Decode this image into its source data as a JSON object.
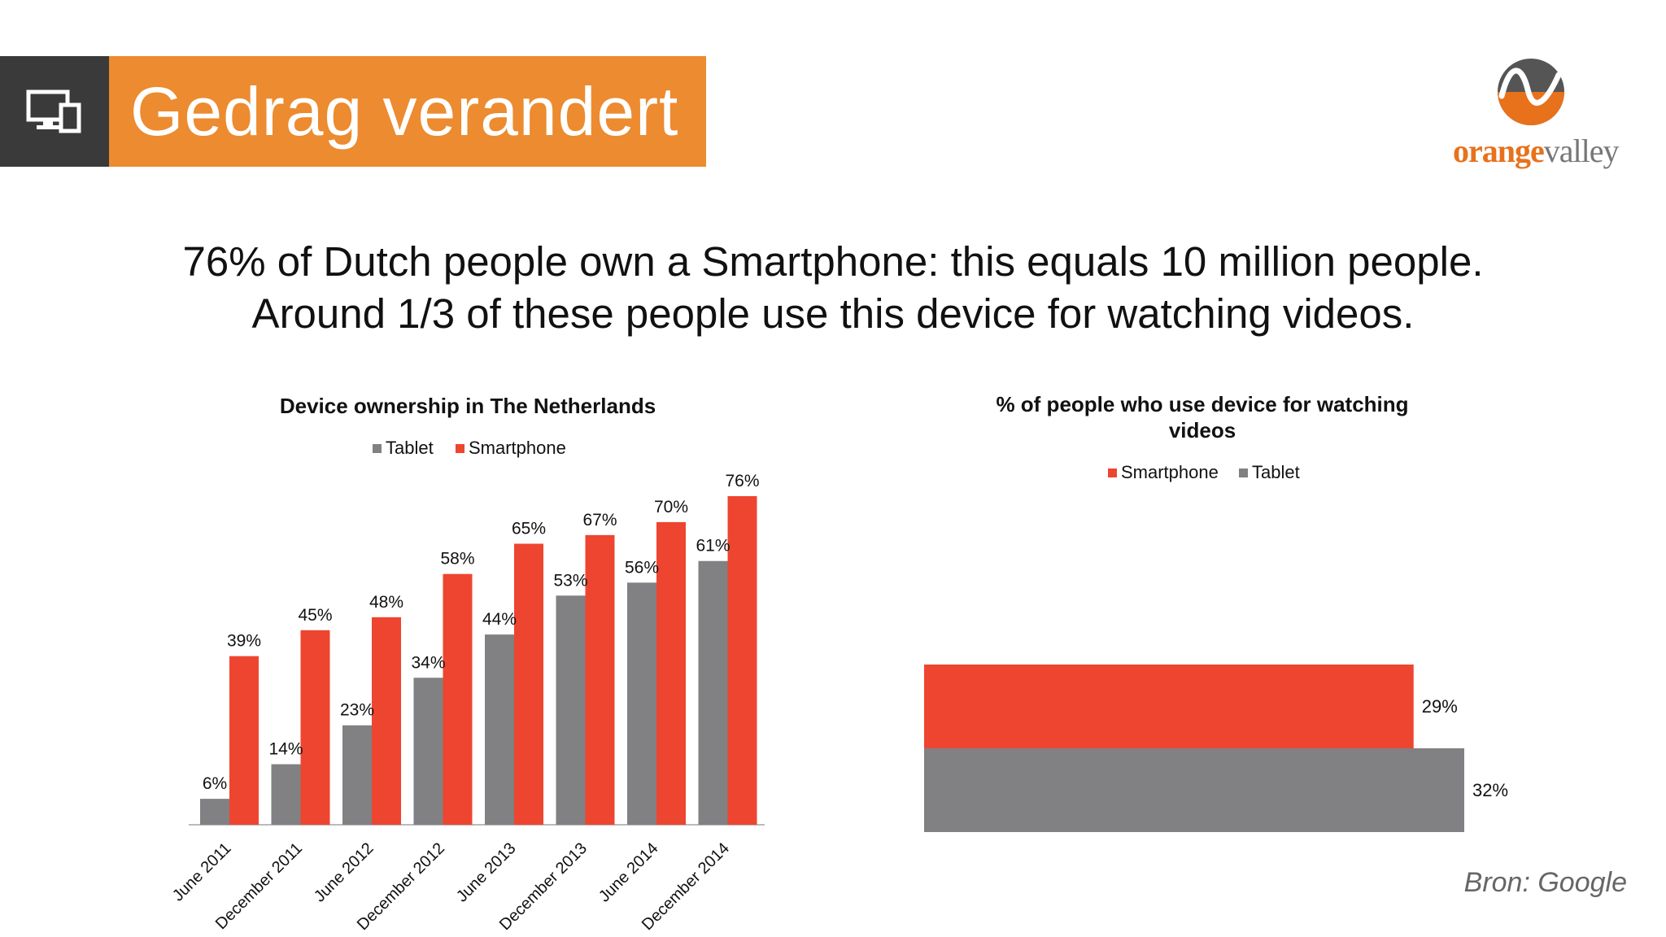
{
  "slide": {
    "title": "Gedrag verandert",
    "headline_line1": "76% of Dutch people own a Smartphone: this equals 10 million people.",
    "headline_line2": "Around 1/3 of these people use this device for watching videos.",
    "source": "Bron: Google",
    "icon": "devices-icon"
  },
  "logo": {
    "part1": "orange",
    "part2": "valley"
  },
  "colors": {
    "orange": "#ec8b2f",
    "dark": "#3a3a3a",
    "smartphone": "#ee4530",
    "tablet": "#818083"
  },
  "chart_data": [
    {
      "type": "bar",
      "title": "Device ownership in The Netherlands",
      "categories": [
        "June 2011",
        "December 2011",
        "June 2012",
        "December 2012",
        "June 2013",
        "December 2013",
        "June 2014",
        "December 2014"
      ],
      "series": [
        {
          "name": "Tablet",
          "values": [
            6,
            14,
            23,
            34,
            44,
            53,
            56,
            61
          ],
          "labels": [
            "6%",
            "14%",
            "23%",
            "34%",
            "44%",
            "53%",
            "56%",
            "61%"
          ]
        },
        {
          "name": "Smartphone",
          "values": [
            39,
            45,
            48,
            58,
            65,
            67,
            70,
            76
          ],
          "labels": [
            "39%",
            "45%",
            "48%",
            "58%",
            "65%",
            "67%",
            "70%",
            "76%"
          ]
        }
      ],
      "ylim": [
        0,
        80
      ],
      "legend": "top",
      "grid": false
    },
    {
      "type": "bar",
      "orientation": "horizontal",
      "title_line1": "% of people who use device for watching",
      "title_line2": "videos",
      "series": [
        {
          "name": "Smartphone",
          "values": [
            29
          ],
          "labels": [
            "29%"
          ]
        },
        {
          "name": "Tablet",
          "values": [
            32
          ],
          "labels": [
            "32%"
          ]
        }
      ],
      "xlim": [
        0,
        32
      ],
      "legend": "top",
      "grid": false
    }
  ]
}
